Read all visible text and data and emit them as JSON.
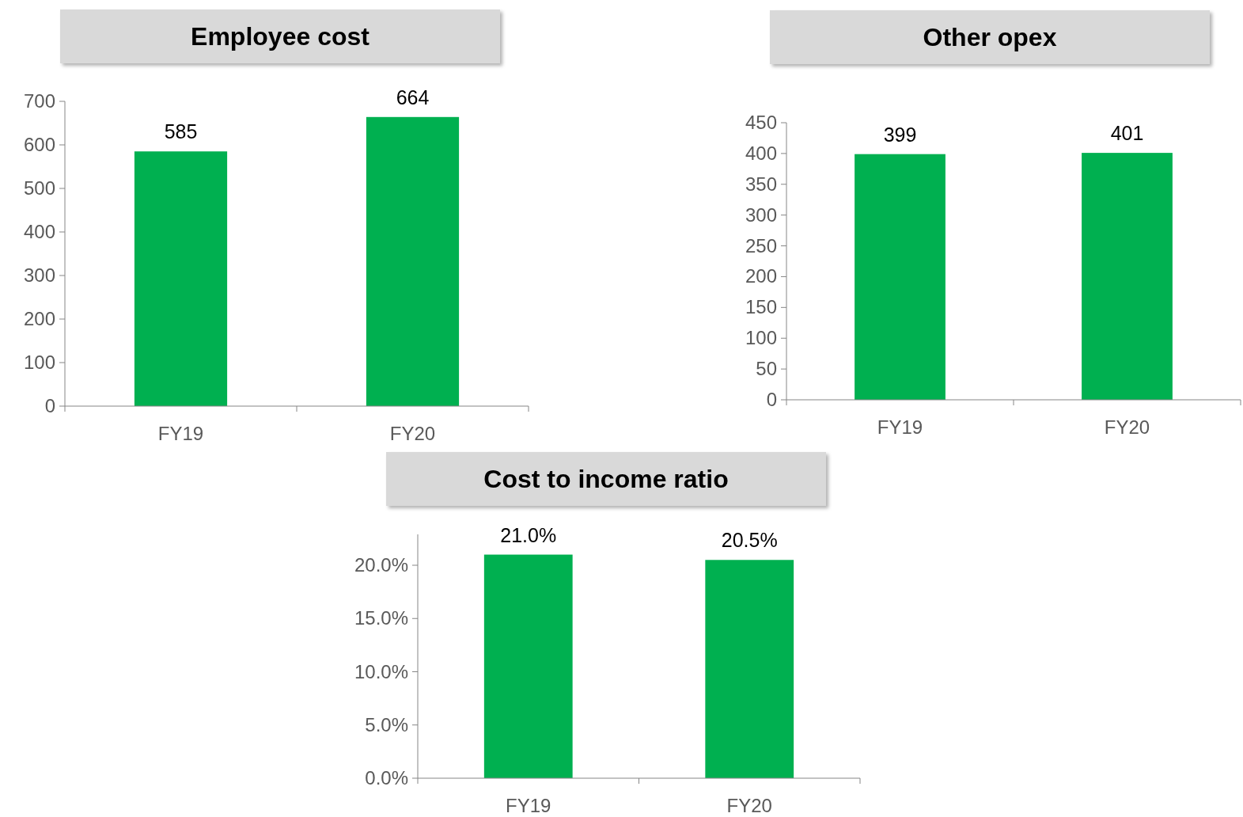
{
  "chart_data": [
    {
      "type": "bar",
      "title": "Employee cost",
      "categories": [
        "FY19",
        "FY20"
      ],
      "values": [
        585,
        664
      ],
      "color": "#00b050",
      "ylim": [
        0,
        700
      ],
      "yticks": [
        0,
        100,
        200,
        300,
        400,
        500,
        600,
        700
      ],
      "data_labels": true,
      "grid": false
    },
    {
      "type": "bar",
      "title": "Other opex",
      "categories": [
        "FY19",
        "FY20"
      ],
      "values": [
        399,
        401
      ],
      "color": "#00b050",
      "ylim": [
        0,
        450
      ],
      "yticks": [
        0,
        50,
        100,
        150,
        200,
        250,
        300,
        350,
        400,
        450
      ],
      "data_labels": true,
      "grid": false
    },
    {
      "type": "bar",
      "title": "Cost to income ratio",
      "categories": [
        "FY19",
        "FY20"
      ],
      "values": [
        21.0,
        20.5
      ],
      "value_labels": [
        "21.0%",
        "20.5%"
      ],
      "color": "#00b050",
      "ylim": [
        0,
        22.9
      ],
      "yticks": [
        {
          "value": 0,
          "label": "0.0%"
        },
        {
          "value": 5,
          "label": "5.0%"
        },
        {
          "value": 10,
          "label": "10.0%"
        },
        {
          "value": 15,
          "label": "15.0%"
        },
        {
          "value": 20,
          "label": "20.0%"
        }
      ],
      "grid": false
    }
  ]
}
